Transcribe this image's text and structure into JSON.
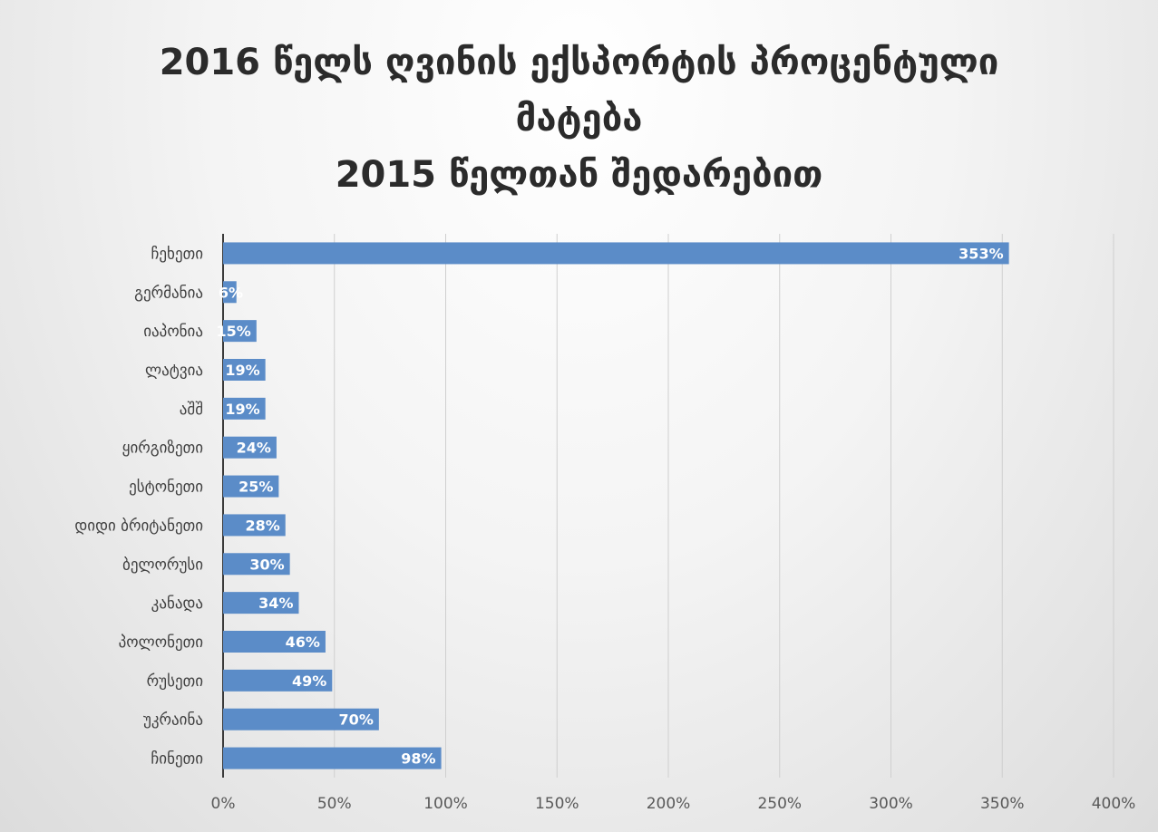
{
  "chart_data": {
    "type": "bar",
    "orientation": "horizontal",
    "title_lines": [
      "2016 წელს ღვინის ექსპორტის პროცენტული",
      "მატება",
      "2015 წელთან შედარებით"
    ],
    "categories": [
      "ჩეხეთი",
      "გერმანია",
      "იაპონია",
      "ლატვია",
      "აშშ",
      "ყირგიზეთი",
      "ესტონეთი",
      "დიდი ბრიტანეთი",
      "ბელორუსი",
      "კანადა",
      "პოლონეთი",
      "რუსეთი",
      "უკრაინა",
      "ჩინეთი"
    ],
    "values": [
      353,
      6,
      15,
      19,
      19,
      24,
      25,
      28,
      30,
      34,
      46,
      49,
      70,
      98
    ],
    "data_labels": [
      "353%",
      "6%",
      "15%",
      "19%",
      "19%",
      "24%",
      "25%",
      "28%",
      "30%",
      "34%",
      "46%",
      "49%",
      "70%",
      "98%"
    ],
    "x_ticks": [
      0,
      50,
      100,
      150,
      200,
      250,
      300,
      350,
      400
    ],
    "x_tick_labels": [
      "0%",
      "50%",
      "100%",
      "150%",
      "200%",
      "250%",
      "300%",
      "350%",
      "400%"
    ],
    "xlim": [
      0,
      400
    ],
    "xlabel": "",
    "ylabel": "",
    "grid": "vertical",
    "legend": "none",
    "bar_color": "#5b8cc8",
    "grid_color": "#cfcfcf",
    "axis_color": "#3a3a3a"
  }
}
